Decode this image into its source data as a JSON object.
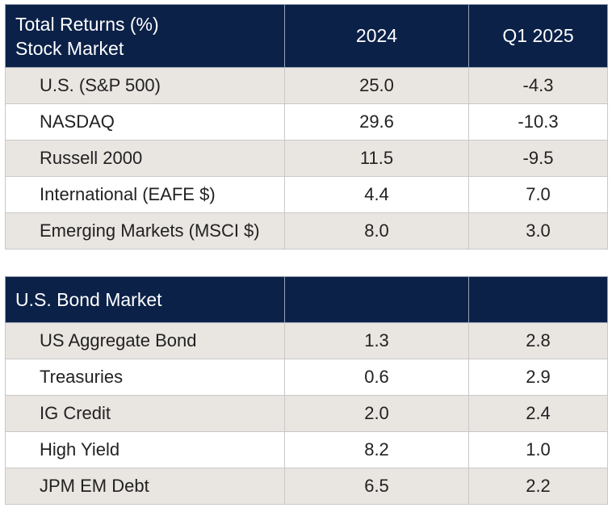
{
  "stock": {
    "header": {
      "title_line1": "Total Returns (%)",
      "title_line2": "Stock Market",
      "col1": "2024",
      "col2": "Q1 2025"
    },
    "rows": [
      {
        "name": "U.S. (S&P 500)",
        "y2024": "25.0",
        "q1_2025": "-4.3"
      },
      {
        "name": "NASDAQ",
        "y2024": "29.6",
        "q1_2025": "-10.3"
      },
      {
        "name": "Russell 2000",
        "y2024": "11.5",
        "q1_2025": "-9.5"
      },
      {
        "name": "International (EAFE $)",
        "y2024": "4.4",
        "q1_2025": "7.0"
      },
      {
        "name": "Emerging Markets (MSCI $)",
        "y2024": "8.0",
        "q1_2025": "3.0"
      }
    ]
  },
  "bond": {
    "header": {
      "title": "U.S. Bond Market"
    },
    "rows": [
      {
        "name": "US Aggregate Bond",
        "y2024": "1.3",
        "q1_2025": "2.8"
      },
      {
        "name": "Treasuries",
        "y2024": "0.6",
        "q1_2025": "2.9"
      },
      {
        "name": "IG Credit",
        "y2024": "2.0",
        "q1_2025": "2.4"
      },
      {
        "name": "High Yield",
        "y2024": "8.2",
        "q1_2025": "1.0"
      },
      {
        "name": "JPM EM Debt",
        "y2024": "6.5",
        "q1_2025": "2.2"
      }
    ]
  }
}
